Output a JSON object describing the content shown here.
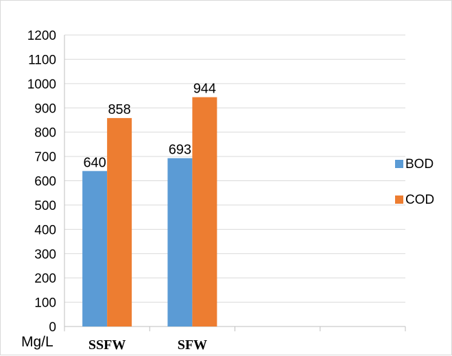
{
  "chart_data": {
    "type": "bar",
    "title": "",
    "xlabel": "",
    "ylabel": "",
    "unit_label": "Mg/L",
    "categories": [
      "SSFW",
      "SFW"
    ],
    "series": [
      {
        "name": "BOD",
        "values": [
          640,
          693
        ],
        "color": "#5b9bd5"
      },
      {
        "name": "COD",
        "values": [
          858,
          944
        ],
        "color": "#ed7d31"
      }
    ],
    "ylim": [
      0,
      1200
    ],
    "ytick_step": 100,
    "n_category_slots": 4,
    "grid": true,
    "legend_position": "right",
    "data_labels": true
  }
}
